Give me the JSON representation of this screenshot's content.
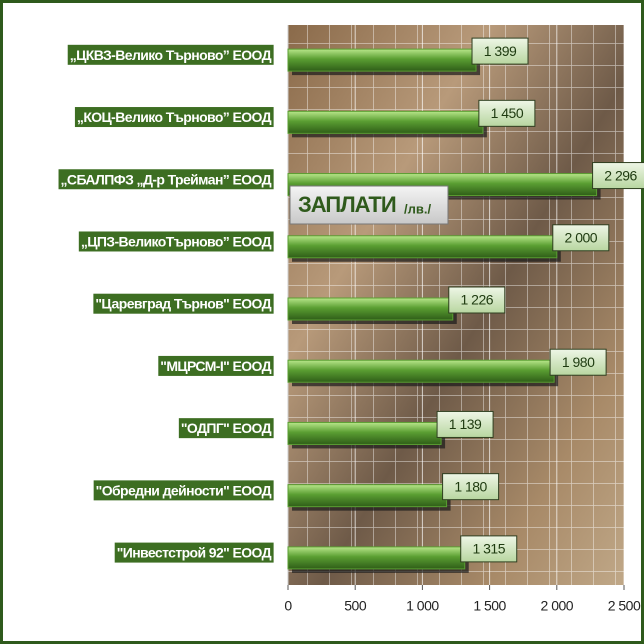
{
  "chart_data": {
    "type": "hbar",
    "title": "ЗАПЛАТИ",
    "unit": "/лв./",
    "categories": [
      "„ЦКВЗ-Велико Търново” ЕООД",
      "„КОЦ-Велико Търново” ЕООД",
      "„СБАЛПФЗ „Д-р Трейман” ЕООД",
      "„ЦПЗ-ВеликоТърново” ЕООД",
      "\"Царевград Търнов\" ЕООД",
      "\"МЦРСМ-I\" ЕООД",
      "\"ОДПГ\" ЕООД",
      "\"Обредни дейности\" ЕООД",
      "\"Инвестстрой 92\" ЕООД"
    ],
    "values": [
      1399,
      1450,
      2296,
      2000,
      1226,
      1980,
      1139,
      1180,
      1315
    ],
    "value_labels": [
      "1 399",
      "1 450",
      "2 296",
      "2 000",
      "1 226",
      "1 980",
      "1 139",
      "1 180",
      "1 315"
    ],
    "color": "#5a9e32",
    "xlim": [
      0,
      2500
    ],
    "xticks": [
      0,
      500,
      {
        "value": 1000,
        "label": "1 000"
      },
      {
        "value": 1500,
        "label": "1 500"
      },
      {
        "value": 2000,
        "label": "2 000"
      },
      {
        "value": 2500,
        "label": "2 500"
      }
    ],
    "grid": true
  }
}
